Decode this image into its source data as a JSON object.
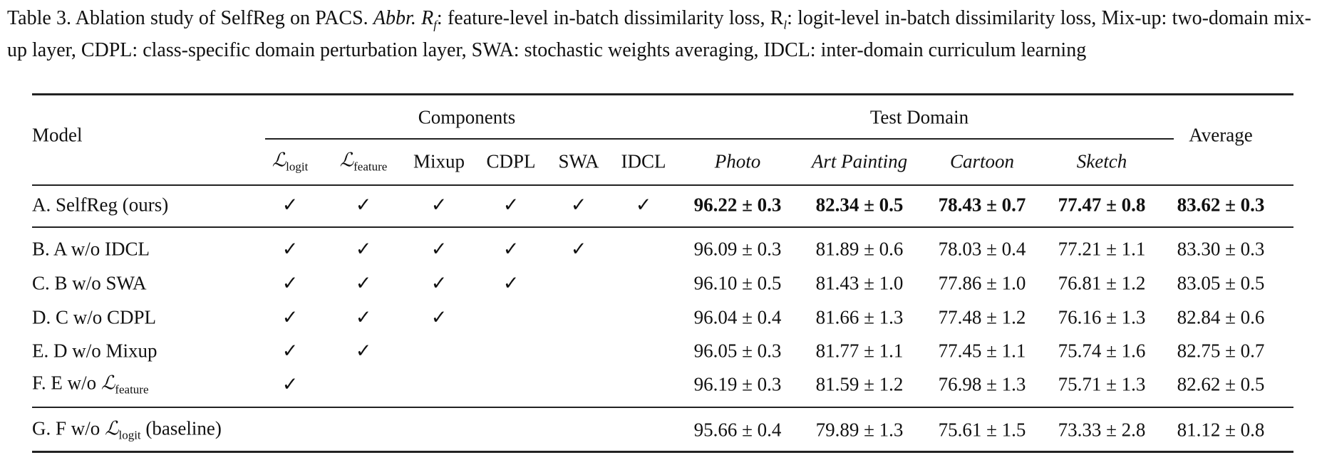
{
  "caption": {
    "label": "Table 3.",
    "text1": " Ablation study of SelfReg on PACS. ",
    "abbr": "Abbr.",
    "text2": " R",
    "rf_sub": "f",
    "text3": ": feature-level in-batch dissimilarity loss, R",
    "rl_sub": "l",
    "text4": ": logit-level in-batch dissimilarity loss, Mix-up: two-domain mix-up layer, CDPL: class-specific domain perturbation layer, SWA: stochastic weights averaging, IDCL: inter-domain curriculum learning"
  },
  "header": {
    "model": "Model",
    "components": "Components",
    "test_domain": "Test Domain",
    "average": "Average",
    "component_cols": [
      "L|logit",
      "L|feature",
      "Mixup",
      "CDPL",
      "SWA",
      "IDCL"
    ],
    "domain_cols": [
      "Photo",
      "Art Painting",
      "Cartoon",
      "Sketch"
    ]
  },
  "check_symbol": "✓",
  "rows": [
    {
      "model": "A. SelfReg (ours)",
      "checks": [
        1,
        1,
        1,
        1,
        1,
        1
      ],
      "values": [
        "96.22 ± 0.3",
        "82.34 ± 0.5",
        "78.43 ± 0.7",
        "77.47 ± 0.8",
        "83.62 ± 0.3"
      ],
      "bold": true
    },
    {
      "model": "B. A w/o IDCL",
      "checks": [
        1,
        1,
        1,
        1,
        1,
        0
      ],
      "values": [
        "96.09 ± 0.3",
        "81.89 ± 0.6",
        "78.03 ± 0.4",
        "77.21 ± 1.1",
        "83.30 ± 0.3"
      ]
    },
    {
      "model": "C. B w/o SWA",
      "checks": [
        1,
        1,
        1,
        1,
        0,
        0
      ],
      "values": [
        "96.10 ± 0.5",
        "81.43 ± 1.0",
        "77.86 ± 1.0",
        "76.81 ± 1.2",
        "83.05 ± 0.5"
      ]
    },
    {
      "model": "D. C w/o CDPL",
      "checks": [
        1,
        1,
        1,
        0,
        0,
        0
      ],
      "values": [
        "96.04 ± 0.4",
        "81.66 ± 1.3",
        "77.48 ± 1.2",
        "76.16 ± 1.3",
        "82.84 ± 0.6"
      ]
    },
    {
      "model": "E. D w/o Mixup",
      "checks": [
        1,
        1,
        0,
        0,
        0,
        0
      ],
      "values": [
        "96.05 ± 0.3",
        "81.77 ± 1.1",
        "77.45 ± 1.1",
        "75.74 ± 1.6",
        "82.75 ± 0.7"
      ]
    },
    {
      "model": "F. E w/o L|feature",
      "checks": [
        1,
        0,
        0,
        0,
        0,
        0
      ],
      "values": [
        "96.19 ± 0.3",
        "81.59 ± 1.2",
        "76.98 ± 1.3",
        "75.71 ± 1.3",
        "82.62 ± 0.5"
      ]
    },
    {
      "model": "G. F w/o L|logit| (baseline)",
      "checks": [
        0,
        0,
        0,
        0,
        0,
        0
      ],
      "values": [
        "95.66 ± 0.4",
        "79.89 ± 1.3",
        "75.61 ± 1.5",
        "73.33 ± 2.8",
        "81.12 ± 0.8"
      ]
    }
  ]
}
